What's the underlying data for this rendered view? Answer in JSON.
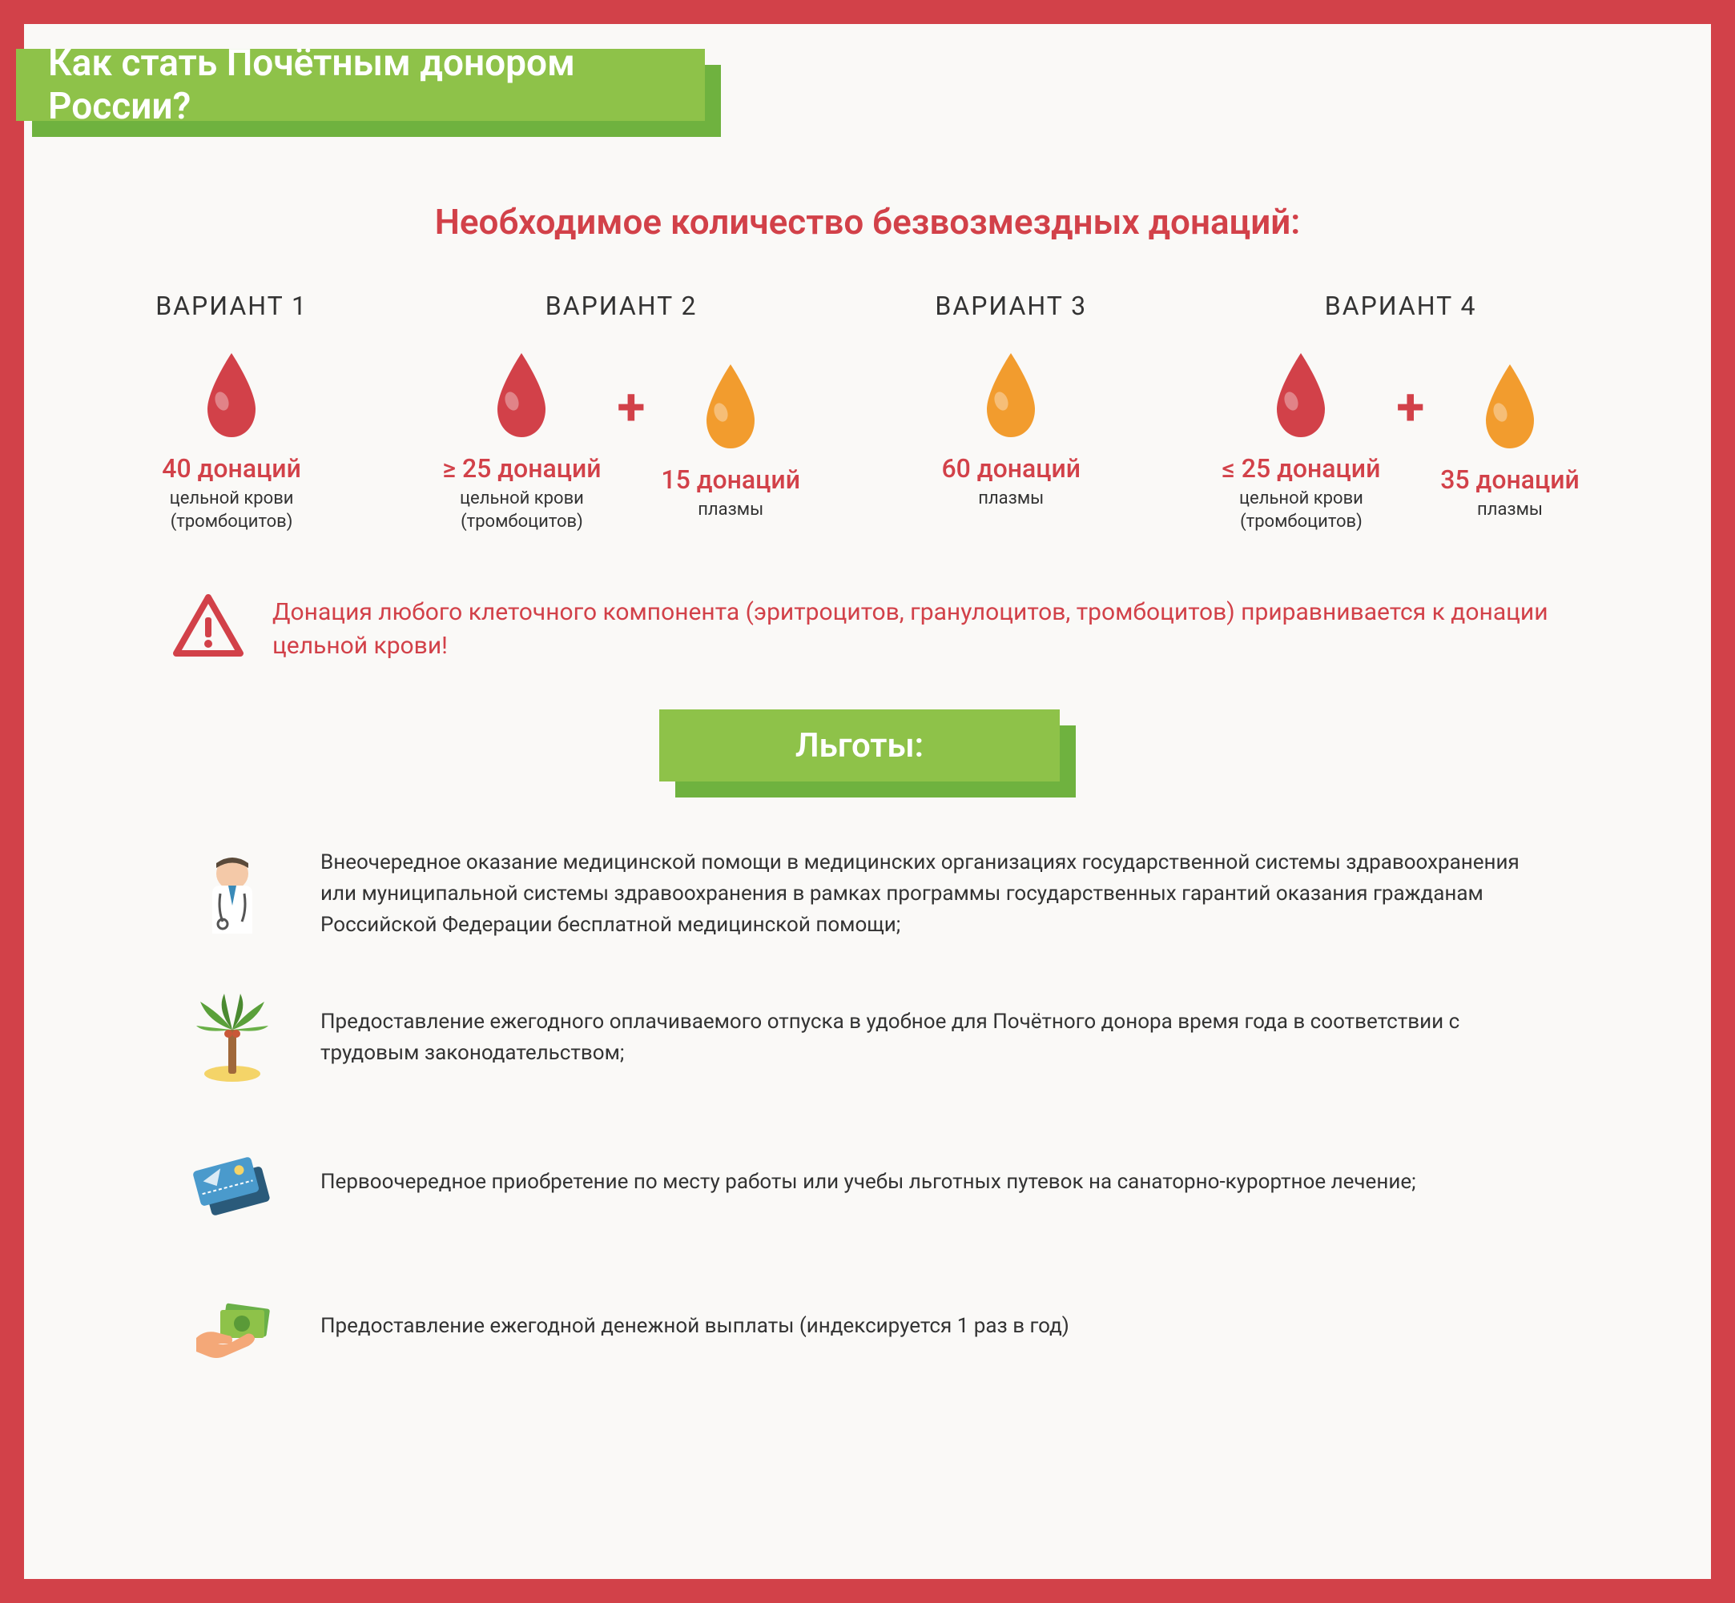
{
  "colors": {
    "frame": "#d24149",
    "background": "#faf9f7",
    "banner_front": "#8ec249",
    "banner_shadow": "#6fb23f",
    "accent_red": "#d24149",
    "accent_orange": "#f29c2e",
    "text_dark": "#333333",
    "white": "#ffffff"
  },
  "title": "Как стать Почётным донором России?",
  "subtitle": "Необходимое количество безвозмездных донаций:",
  "variants": [
    {
      "label": "ВАРИАНТ 1",
      "drops": [
        {
          "color": "#d24149",
          "count": "40 донаций",
          "type": "цельной крови\n(тромбоцитов)"
        }
      ]
    },
    {
      "label": "ВАРИАНТ 2",
      "drops": [
        {
          "color": "#d24149",
          "count": "≥ 25 донаций",
          "type": "цельной крови\n(тромбоцитов)"
        },
        {
          "color": "#f29c2e",
          "count": "15 донаций",
          "type": "плазмы"
        }
      ]
    },
    {
      "label": "ВАРИАНТ 3",
      "drops": [
        {
          "color": "#f29c2e",
          "count": "60 донаций",
          "type": "плазмы"
        }
      ]
    },
    {
      "label": "ВАРИАНТ 4",
      "drops": [
        {
          "color": "#d24149",
          "count": "≤ 25 донаций",
          "type": "цельной крови\n(тромбоцитов)"
        },
        {
          "color": "#f29c2e",
          "count": "35 донаций",
          "type": "плазмы"
        }
      ]
    }
  ],
  "warning": "Донация любого клеточного компонента (эритроцитов, гранулоцитов, тромбоцитов) приравнивается к донации цельной крови!",
  "benefits_title": "Льготы:",
  "benefits": [
    {
      "icon": "doctor",
      "text": "Внеочередное оказание медицинской помощи в медицинских организациях государственной системы здравоохранения или муниципальной системы здравоохранения в рамках программы государственных гарантий оказания гражданам Российской Федерации бесплатной медицинской помощи;"
    },
    {
      "icon": "palm",
      "text": "Предоставление ежегодного оплачиваемого отпуска в удобное для Почётного донора время года в соответствии с трудовым законодательством;"
    },
    {
      "icon": "tickets",
      "text": "Первоочередное приобретение по месту работы или учебы льготных путевок на санаторно-курортное лечение;"
    },
    {
      "icon": "money",
      "text": "Предоставление ежегодной денежной выплаты (индексируется 1 раз в год)"
    }
  ]
}
